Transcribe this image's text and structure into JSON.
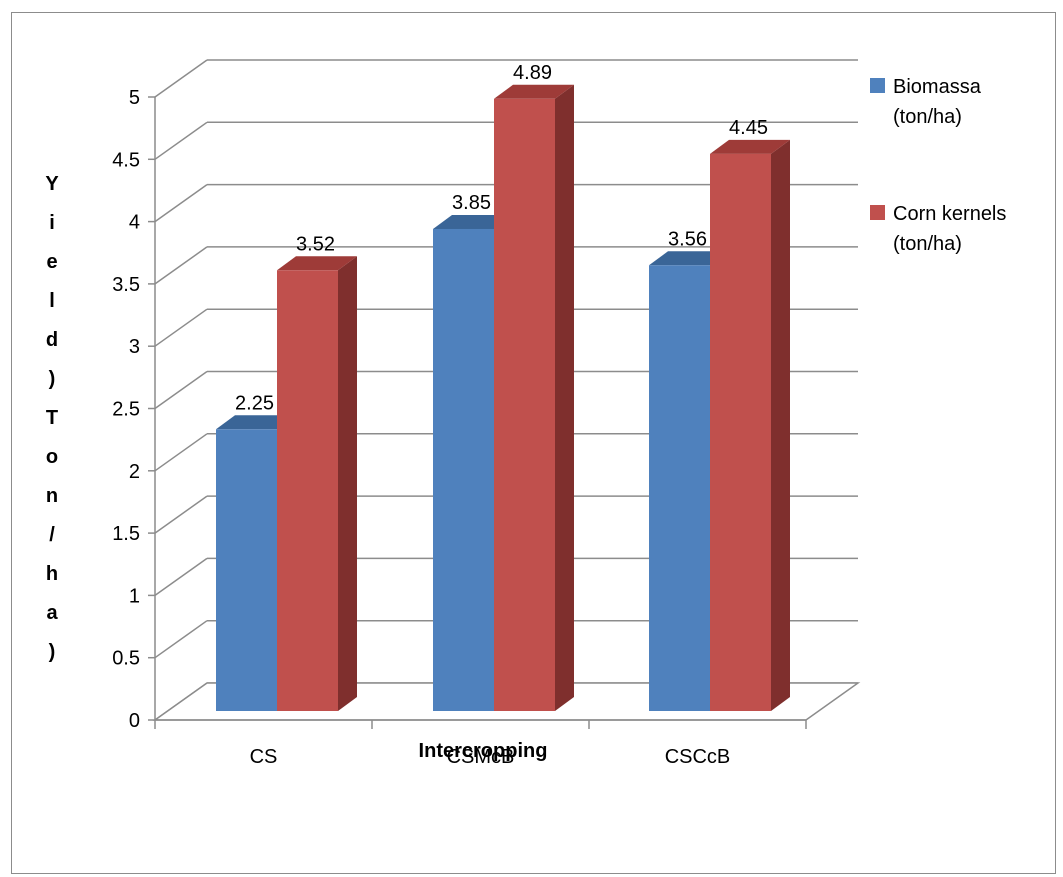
{
  "chart_data": {
    "type": "bar",
    "categories": [
      "CS",
      "CSMcB",
      "CSCcB"
    ],
    "series": [
      {
        "name": "Biomassa (ton/ha)",
        "legend_lines": [
          "Biomassa",
          "(ton/ha)"
        ],
        "values": [
          2.25,
          3.85,
          3.56
        ],
        "color": "#4f81bd",
        "side_color": "#385d8a",
        "top_color": "#3a6597"
      },
      {
        "name": "Corn kernels (ton/ha)",
        "legend_lines": [
          "Corn kernels",
          "(ton/ha)"
        ],
        "values": [
          3.52,
          4.89,
          4.45
        ],
        "color": "#c0504d",
        "side_color": "#7f2f2d",
        "top_color": "#9e3b38"
      }
    ],
    "data_labels": [
      [
        "2.25",
        "3.85",
        "3.56"
      ],
      [
        "3.52",
        "4.89",
        "4.45"
      ]
    ],
    "ylim": [
      0,
      5
    ],
    "y_ticks": [
      "0",
      "0.5",
      "1",
      "1.5",
      "2",
      "2.5",
      "3",
      "3.5",
      "4",
      "4.5",
      "5"
    ],
    "xlabel": "Intercropping",
    "ylabel": "Yield)Ton/ha)",
    "grid": true,
    "legend_position": "right"
  }
}
